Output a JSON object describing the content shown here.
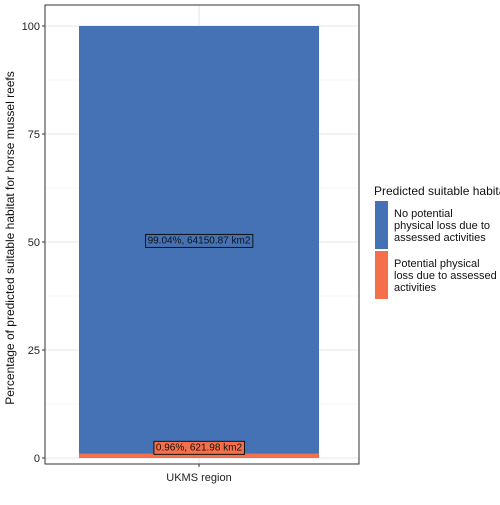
{
  "chart_data": {
    "type": "bar",
    "stacked": true,
    "categories": [
      "UKMS region"
    ],
    "series": [
      {
        "name": "Potential physical loss due to assessed activities",
        "values": [
          0.96
        ],
        "label": "0.96%,   621.98 km2",
        "color": "#F5704A"
      },
      {
        "name": "No potential physical loss due to assessed activities",
        "values": [
          99.04
        ],
        "label": "99.04%, 64150.87 km2",
        "color": "#4472B5"
      }
    ],
    "xlabel": "",
    "ylabel": "Percentage of predicted suitable habitat for horse mussel reefs",
    "ylim": [
      0,
      100
    ],
    "yticks": [
      0,
      25,
      50,
      75,
      100
    ],
    "grid": true,
    "legend": {
      "title": "Predicted suitable habitat",
      "placement": "right",
      "entries": [
        {
          "lines": [
            "No potential",
            "physical loss due to",
            "assessed activities"
          ],
          "color": "#4472B5"
        },
        {
          "lines": [
            "Potential physical",
            "loss due to assessed",
            "activities"
          ],
          "color": "#F5704A"
        }
      ]
    }
  }
}
